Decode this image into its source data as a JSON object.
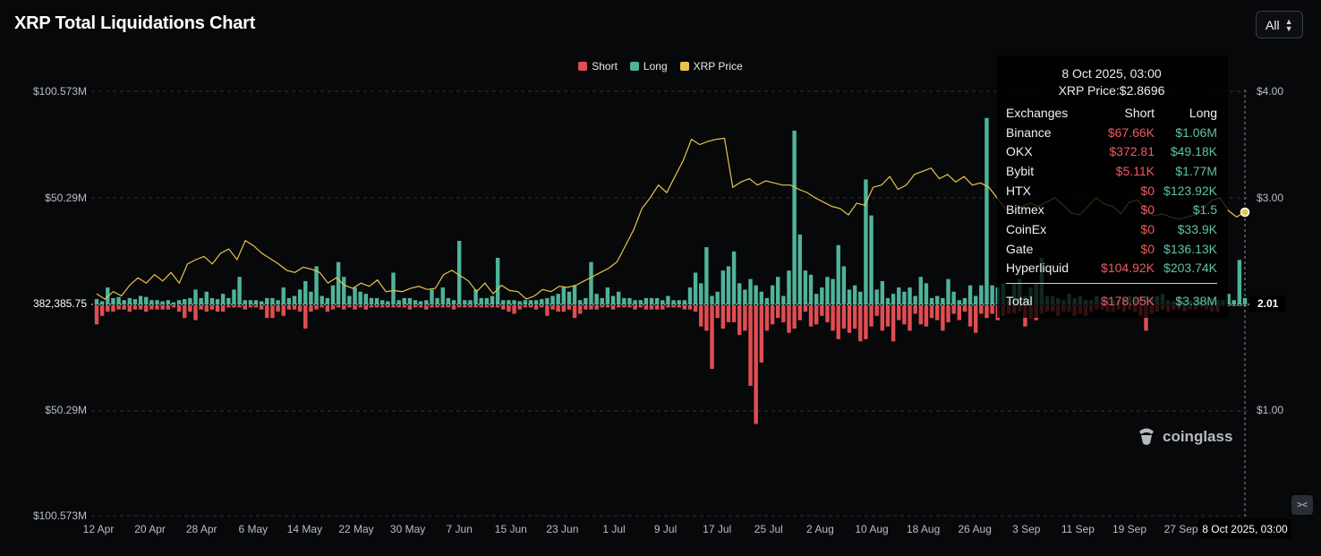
{
  "title": "XRP Total Liquidations Chart",
  "range_select": {
    "value": "All"
  },
  "colors": {
    "short": "#e14d51",
    "long": "#4fb39a",
    "price": "#e8c44a",
    "background": "#07080a"
  },
  "legend": [
    {
      "label": "Short",
      "color": "#e14d51"
    },
    {
      "label": "Long",
      "color": "#4fb39a"
    },
    {
      "label": "XRP Price",
      "color": "#e8c44a"
    }
  ],
  "chart_data": {
    "type": "bar",
    "left_axis": {
      "ticks": [
        "$100.573M",
        "$50.29M",
        "382,385.75",
        "$50.29M",
        "$100.573M"
      ],
      "range": [
        -100.573,
        100.573
      ],
      "unit": "$M"
    },
    "right_axis": {
      "ticks": [
        "$4.00",
        "$3.00",
        "2.01",
        "$1.00"
      ],
      "range": [
        0.02,
        4.0
      ]
    },
    "x_ticks": [
      "12 Apr",
      "20 Apr",
      "28 Apr",
      "6 May",
      "14 May",
      "22 May",
      "30 May",
      "7 Jun",
      "15 Jun",
      "23 Jun",
      "1 Jul",
      "9 Jul",
      "17 Jul",
      "25 Jul",
      "2 Aug",
      "10 Aug",
      "18 Aug",
      "26 Aug",
      "3 Sep",
      "11 Sep",
      "19 Sep",
      "27 Sep"
    ],
    "x_tick_active": "8 Oct 2025, 03:00",
    "series": [
      {
        "name": "Long",
        "values": [
          2.5,
          1.5,
          8,
          3,
          3.5,
          2,
          3,
          2.5,
          4,
          3.5,
          2,
          2,
          1.5,
          2,
          1,
          2,
          2.5,
          3,
          7,
          3,
          6,
          3,
          2.5,
          5,
          3,
          7,
          13,
          2,
          2,
          2,
          1.5,
          3,
          3,
          2,
          8,
          3,
          4,
          7,
          11,
          6,
          18,
          4,
          3,
          9,
          20,
          13,
          4,
          8,
          6,
          5,
          3,
          3,
          2,
          1.5,
          15,
          2,
          3,
          3,
          2,
          1.5,
          2,
          7,
          3,
          8,
          3,
          2,
          30,
          2,
          2,
          7,
          3,
          3,
          4,
          22,
          2,
          2,
          2,
          1.5,
          2,
          2,
          2,
          2.5,
          3,
          4,
          5,
          8,
          6,
          9,
          2,
          3,
          20,
          5,
          3,
          8,
          4,
          6,
          3,
          3,
          2,
          2,
          3,
          3,
          3,
          2,
          4,
          2,
          2,
          2,
          8,
          15,
          10,
          27,
          4,
          6,
          16,
          18,
          25,
          10,
          7,
          12,
          9,
          6,
          3,
          9,
          13,
          4,
          16,
          82,
          33,
          16,
          14,
          5,
          8,
          13,
          12,
          28,
          18,
          7,
          9,
          6,
          59,
          42,
          7,
          11,
          3,
          5,
          8,
          6,
          8,
          4,
          13,
          10,
          3,
          4,
          3,
          12,
          6,
          2,
          3,
          9,
          4,
          9,
          88,
          9,
          8,
          10,
          2,
          10,
          12,
          4,
          8,
          10,
          22,
          4,
          4,
          3,
          2,
          5,
          3,
          4,
          2,
          2,
          4,
          2,
          3,
          2,
          2,
          3,
          4,
          3,
          4,
          4,
          3,
          4,
          5,
          2,
          1.5,
          3,
          2,
          2,
          3,
          2,
          2,
          3,
          2,
          2,
          5,
          2,
          21,
          3
        ]
      },
      {
        "name": "Short",
        "values": [
          -9,
          -5,
          -3,
          -3,
          -2,
          -2,
          -3,
          -2,
          -2,
          -3,
          -2,
          -2,
          -2,
          -2,
          -1,
          -3,
          -6,
          -3,
          -7,
          -2,
          -3,
          -2,
          -3,
          -3,
          -1,
          -1,
          -1,
          -2,
          -1,
          -1,
          -2,
          -6,
          -6,
          -3,
          -5,
          -2,
          -2,
          -3,
          -11,
          -3,
          -2,
          -1,
          -3,
          -2,
          -1,
          -2,
          -1,
          -2,
          -1,
          -2,
          -1,
          -1,
          -1,
          -1,
          -1,
          -1,
          -1,
          -2,
          -1,
          -1,
          -2,
          -1,
          -1,
          -1,
          -1,
          -2,
          -1,
          -1,
          -1,
          -1,
          -1,
          -1,
          -1,
          -1,
          -2,
          -3,
          -4,
          -2,
          -1,
          -1,
          -2,
          -1,
          -5,
          -2,
          -3,
          -3,
          -2,
          -6,
          -4,
          -2,
          -2,
          -2,
          -1,
          -1,
          -2,
          -1,
          -1,
          -1,
          -2,
          -1,
          -2,
          -2,
          -2,
          -2,
          -1,
          -1,
          -1,
          -2,
          -2,
          -3,
          -10,
          -12,
          -30,
          -6,
          -11,
          -8,
          -8,
          -14,
          -12,
          -38,
          -56,
          -27,
          -12,
          -9,
          -6,
          -8,
          -13,
          -11,
          -7,
          -3,
          -10,
          -9,
          -5,
          -8,
          -12,
          -16,
          -11,
          -13,
          -11,
          -17,
          -16,
          -10,
          -5,
          -12,
          -10,
          -17,
          -7,
          -9,
          -12,
          -4,
          -9,
          -10,
          -6,
          -7,
          -12,
          -8,
          -4,
          -7,
          -3,
          -10,
          -13,
          -4,
          -6,
          -4,
          -7,
          -5,
          -4,
          -4,
          -3,
          -10,
          -6,
          -7,
          -4,
          -3,
          -3,
          -5,
          -3,
          -3,
          -5,
          -4,
          -5,
          -3,
          -2,
          -2,
          -3,
          -3,
          -2,
          -3,
          -2,
          -3,
          -5,
          -12,
          -4,
          -3,
          -2,
          -3,
          -2,
          -2,
          -3,
          -2,
          -2,
          -1,
          -2,
          -3,
          -3
        ]
      },
      {
        "name": "XRP Price",
        "values": [
          2.1,
          2.05,
          2.12,
          2.08,
          2.18,
          2.25,
          2.2,
          2.28,
          2.22,
          2.3,
          2.2,
          2.38,
          2.42,
          2.45,
          2.38,
          2.48,
          2.52,
          2.42,
          2.6,
          2.55,
          2.48,
          2.43,
          2.38,
          2.32,
          2.3,
          2.35,
          2.33,
          2.3,
          2.2,
          2.25,
          2.18,
          2.15,
          2.2,
          2.17,
          2.23,
          2.12,
          2.13,
          2.12,
          2.15,
          2.17,
          2.14,
          2.15,
          2.28,
          2.32,
          2.27,
          2.22,
          2.12,
          2.2,
          2.1,
          2.18,
          2.13,
          2.12,
          2.05,
          2.08,
          2.14,
          2.12,
          2.17,
          2.16,
          2.18,
          2.22,
          2.26,
          2.3,
          2.34,
          2.4,
          2.55,
          2.7,
          2.9,
          3.0,
          3.12,
          3.05,
          3.2,
          3.35,
          3.55,
          3.5,
          3.53,
          3.55,
          3.56,
          3.1,
          3.15,
          3.18,
          3.12,
          3.16,
          3.14,
          3.12,
          3.12,
          3.08,
          3.05,
          3.0,
          2.96,
          2.92,
          2.9,
          2.84,
          2.95,
          2.93,
          3.1,
          3.12,
          3.2,
          3.08,
          3.12,
          3.22,
          3.25,
          3.28,
          3.18,
          3.22,
          3.15,
          3.2,
          3.12,
          3.14,
          3.1,
          3.0,
          2.9,
          2.88,
          2.92,
          2.95,
          2.92,
          2.96,
          3.0,
          2.93,
          2.86,
          2.84,
          2.92,
          3.0,
          2.94,
          2.92,
          2.85,
          2.96,
          2.98,
          2.9,
          2.83,
          2.85,
          2.82,
          2.8,
          2.82,
          2.84,
          2.9,
          2.98,
          3.0,
          2.88,
          2.82,
          2.87
        ]
      }
    ]
  },
  "tooltip": {
    "date": "8 Oct 2025, 03:00",
    "price": "XRP Price:$2.8696",
    "header": {
      "exchange": "Exchanges",
      "short": "Short",
      "long": "Long"
    },
    "rows": [
      {
        "exchange": "Binance",
        "short": "$67.66K",
        "long": "$1.06M"
      },
      {
        "exchange": "OKX",
        "short": "$372.81",
        "long": "$49.18K"
      },
      {
        "exchange": "Bybit",
        "short": "$5.11K",
        "long": "$1.77M"
      },
      {
        "exchange": "HTX",
        "short": "$0",
        "long": "$123.92K"
      },
      {
        "exchange": "Bitmex",
        "short": "$0",
        "long": "$1.5"
      },
      {
        "exchange": "CoinEx",
        "short": "$0",
        "long": "$33.9K"
      },
      {
        "exchange": "Gate",
        "short": "$0",
        "long": "$136.13K"
      },
      {
        "exchange": "Hyperliquid",
        "short": "$104.92K",
        "long": "$203.74K"
      }
    ],
    "total": {
      "exchange": "Total",
      "short": "$178.05K",
      "long": "$3.38M"
    }
  },
  "watermark": "coinglass"
}
